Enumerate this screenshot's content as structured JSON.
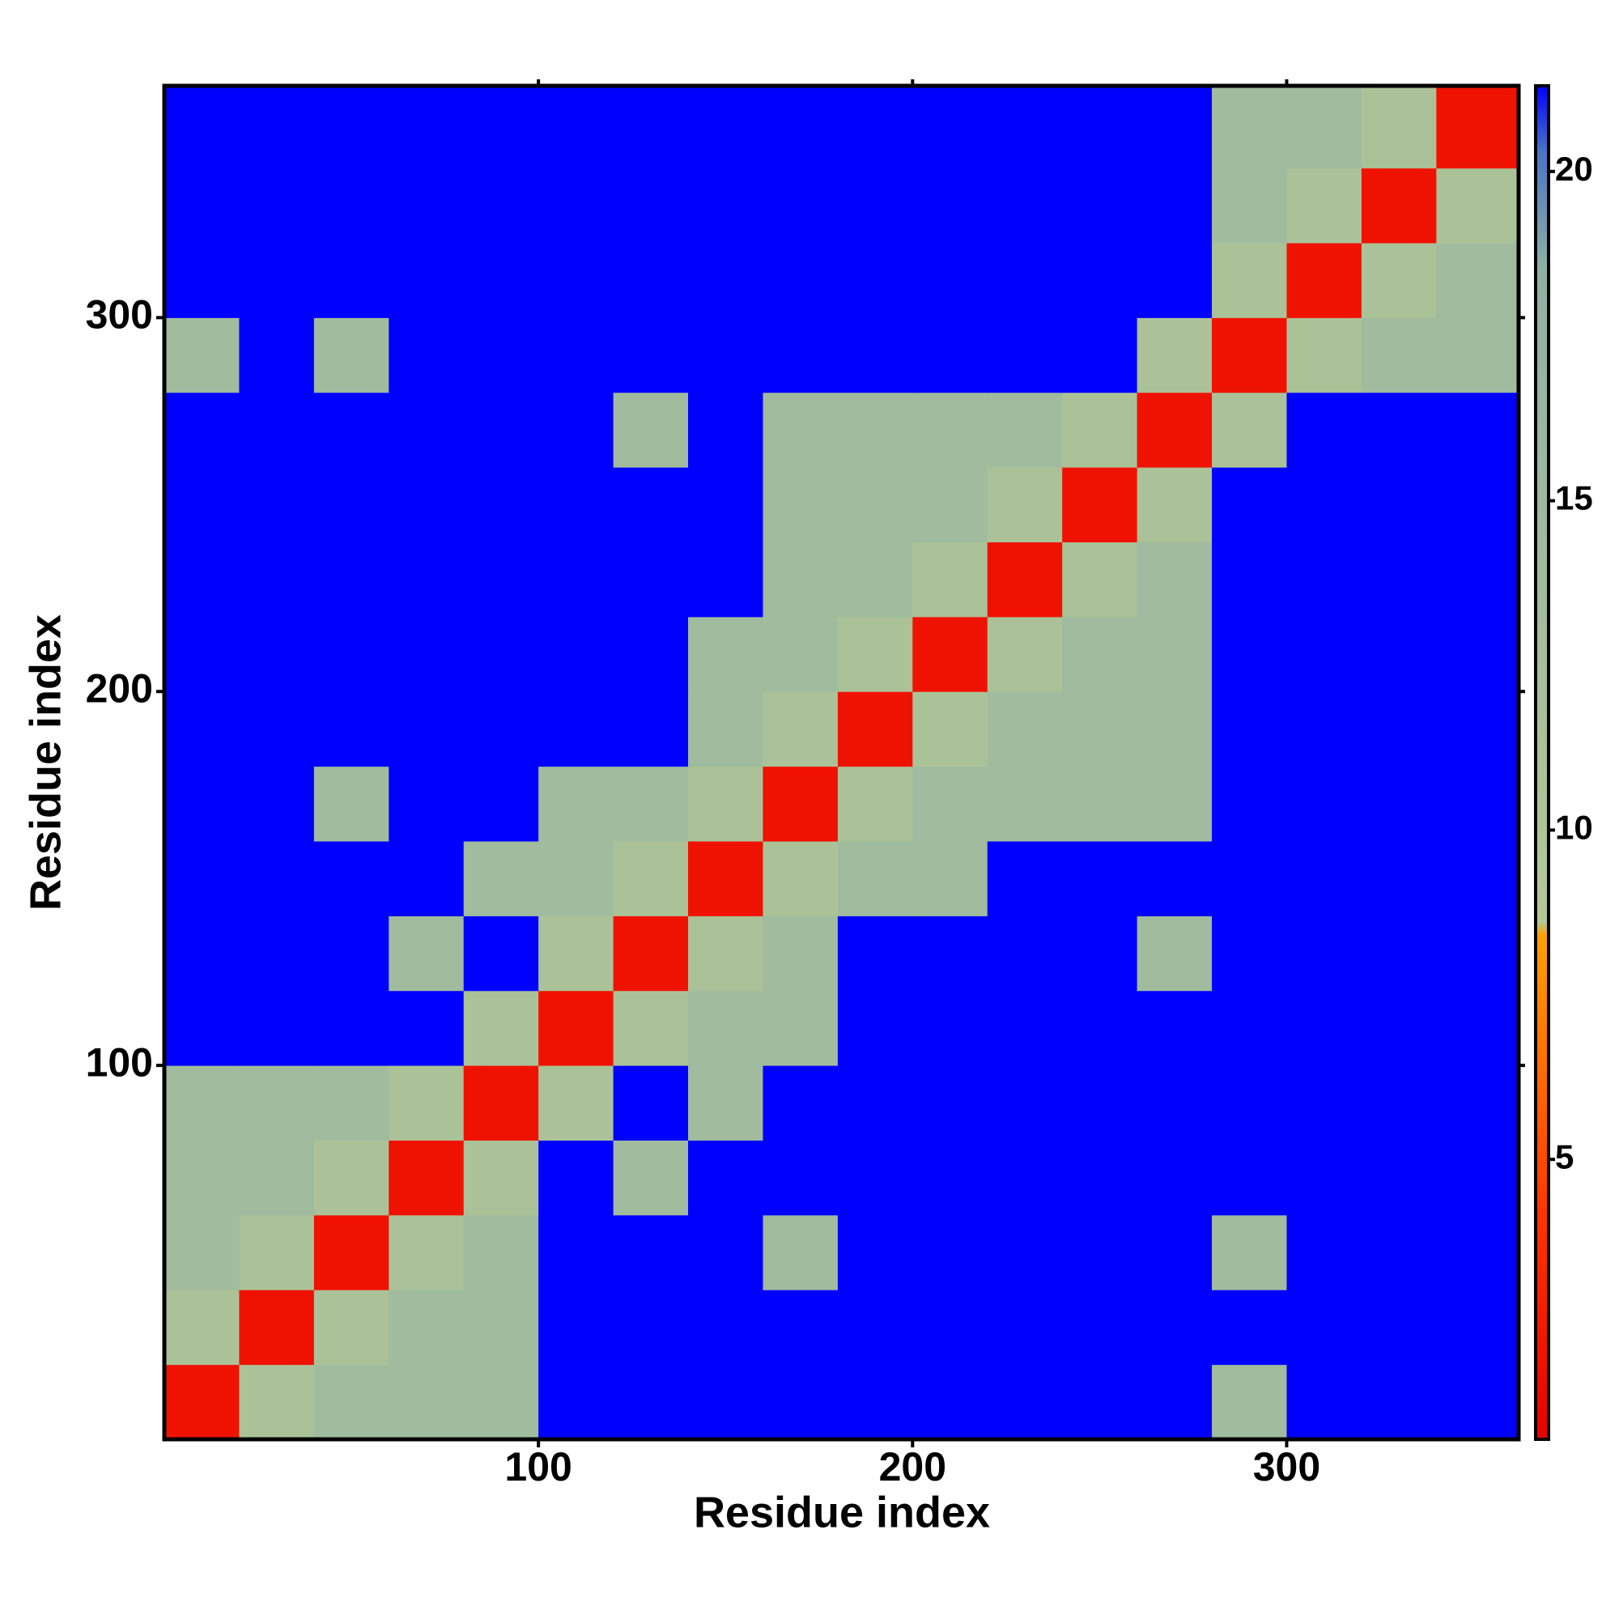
{
  "chart_data": {
    "type": "heatmap",
    "x_label": "Residue index",
    "y_label": "Residue index",
    "xlim": [
      0,
      362
    ],
    "ylim": [
      0,
      362
    ],
    "xticks": [
      100,
      200,
      300
    ],
    "yticks": [
      100,
      200,
      300
    ],
    "bins": [
      0,
      20,
      40,
      60,
      80,
      100,
      120,
      140,
      160,
      180,
      200,
      220,
      240,
      260,
      280,
      300,
      320,
      340,
      362
    ],
    "z": [
      [
        2,
        11,
        14,
        14,
        14,
        22,
        22,
        22,
        22,
        22,
        22,
        22,
        22,
        22,
        14,
        22,
        22,
        22
      ],
      [
        11,
        2,
        11,
        14,
        14,
        22,
        22,
        22,
        22,
        22,
        22,
        22,
        22,
        22,
        22,
        22,
        22,
        22
      ],
      [
        14,
        11,
        2,
        11,
        14,
        22,
        22,
        22,
        14,
        22,
        22,
        22,
        22,
        22,
        14,
        22,
        22,
        22
      ],
      [
        14,
        14,
        11,
        2,
        11,
        22,
        14,
        22,
        22,
        22,
        22,
        22,
        22,
        22,
        22,
        22,
        22,
        22
      ],
      [
        14,
        14,
        14,
        11,
        2,
        11,
        22,
        14,
        22,
        22,
        22,
        22,
        22,
        22,
        22,
        22,
        22,
        22
      ],
      [
        22,
        22,
        22,
        22,
        11,
        2,
        11,
        14,
        14,
        22,
        22,
        22,
        22,
        22,
        22,
        22,
        22,
        22
      ],
      [
        22,
        22,
        22,
        14,
        22,
        11,
        2,
        11,
        14,
        22,
        22,
        22,
        22,
        14,
        22,
        22,
        22,
        22
      ],
      [
        22,
        22,
        22,
        22,
        14,
        14,
        11,
        2,
        11,
        14,
        14,
        22,
        22,
        22,
        22,
        22,
        22,
        22
      ],
      [
        22,
        22,
        14,
        22,
        22,
        14,
        14,
        11,
        2,
        11,
        14,
        14,
        14,
        14,
        22,
        22,
        22,
        22
      ],
      [
        22,
        22,
        22,
        22,
        22,
        22,
        22,
        14,
        11,
        2,
        11,
        14,
        14,
        14,
        22,
        22,
        22,
        22
      ],
      [
        22,
        22,
        22,
        22,
        22,
        22,
        22,
        14,
        14,
        11,
        2,
        11,
        14,
        14,
        22,
        22,
        22,
        22
      ],
      [
        22,
        22,
        22,
        22,
        22,
        22,
        22,
        22,
        14,
        14,
        11,
        2,
        11,
        14,
        22,
        22,
        22,
        22
      ],
      [
        22,
        22,
        22,
        22,
        22,
        22,
        22,
        22,
        14,
        14,
        14,
        11,
        2,
        11,
        22,
        22,
        22,
        22
      ],
      [
        22,
        22,
        22,
        22,
        22,
        22,
        14,
        22,
        14,
        14,
        14,
        14,
        11,
        2,
        11,
        22,
        22,
        22
      ],
      [
        14,
        22,
        14,
        22,
        22,
        22,
        22,
        22,
        22,
        22,
        22,
        22,
        22,
        11,
        2,
        11,
        14,
        14
      ],
      [
        22,
        22,
        22,
        22,
        22,
        22,
        22,
        22,
        22,
        22,
        22,
        22,
        22,
        22,
        11,
        2,
        11,
        14
      ],
      [
        22,
        22,
        22,
        22,
        22,
        22,
        22,
        22,
        22,
        22,
        22,
        22,
        22,
        22,
        14,
        11,
        2,
        11
      ],
      [
        22,
        22,
        22,
        22,
        22,
        22,
        22,
        22,
        22,
        22,
        22,
        22,
        22,
        22,
        14,
        14,
        11,
        2
      ]
    ],
    "clim": [
      0.75,
      21.3
    ],
    "cticks": [
      5,
      10,
      15,
      20
    ],
    "colorscale": [
      [
        0.75,
        "#e60000"
      ],
      [
        4,
        "#ff3000"
      ],
      [
        8.4,
        "#ffa000"
      ],
      [
        8.6,
        "#b4c894"
      ],
      [
        18.5,
        "#8fb0a4"
      ],
      [
        20.3,
        "#4a74c4"
      ],
      [
        21.3,
        "#0000ff"
      ]
    ]
  }
}
